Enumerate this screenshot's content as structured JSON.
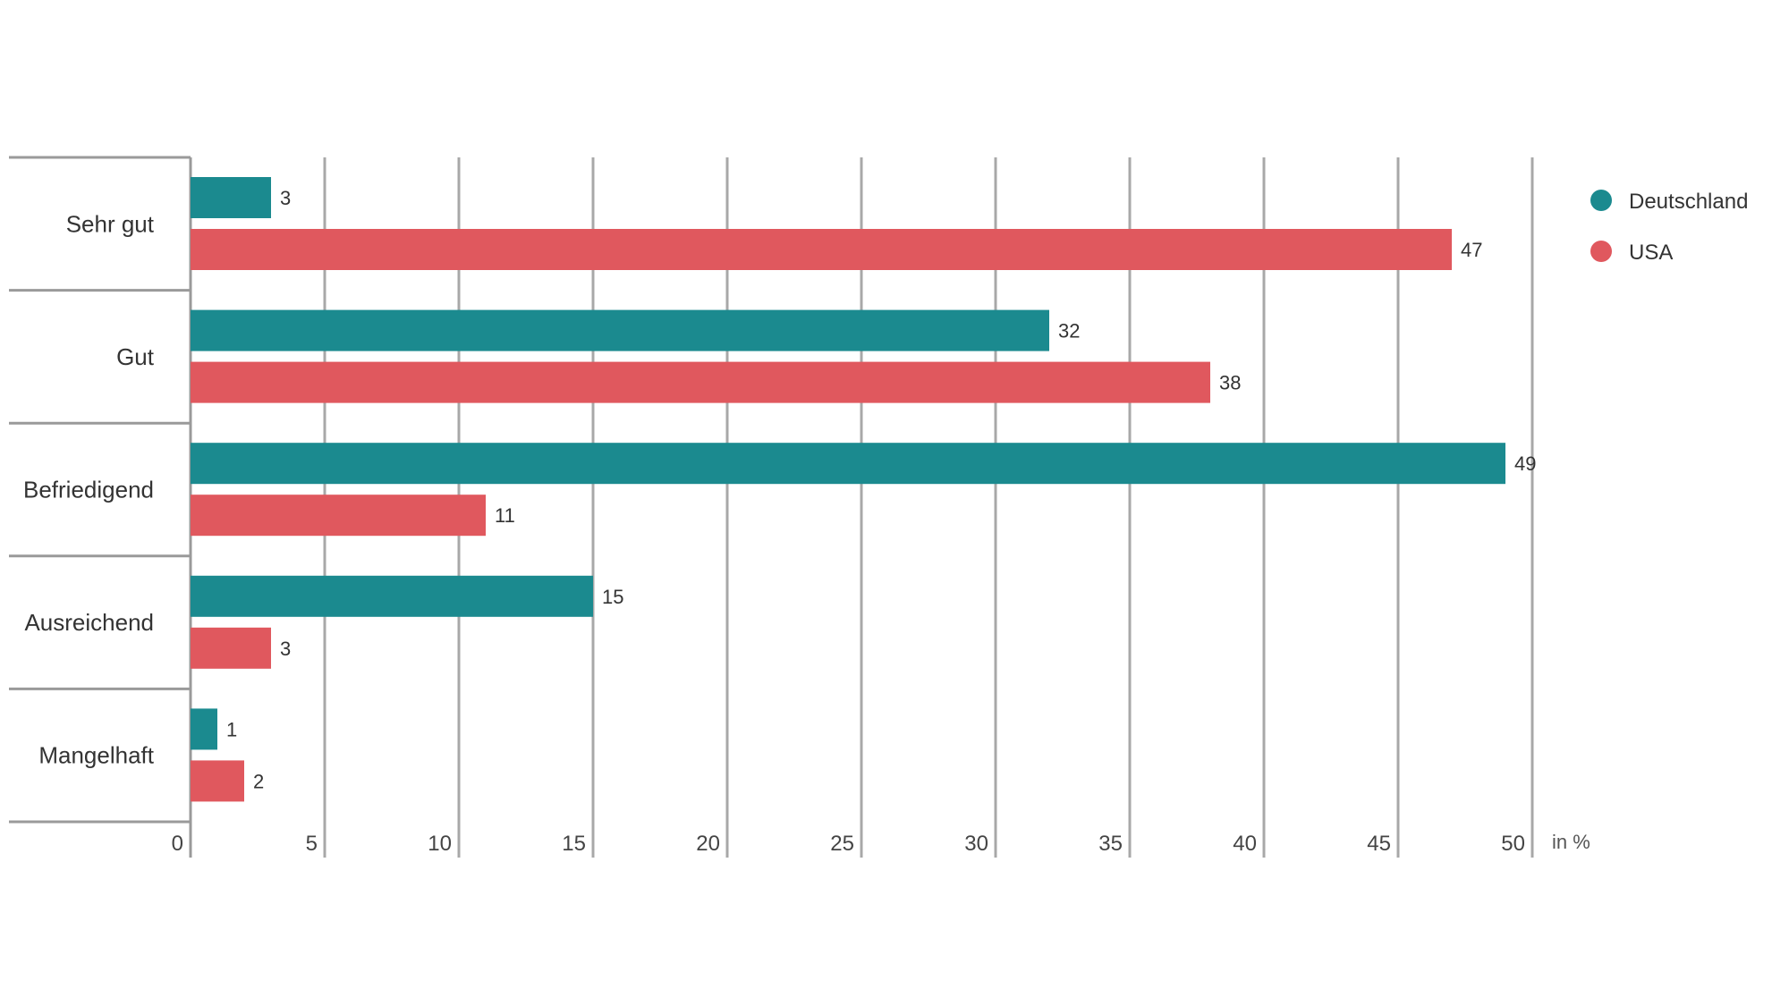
{
  "chart_data": {
    "type": "bar",
    "orientation": "horizontal",
    "categories": [
      "Sehr gut",
      "Gut",
      "Befriedigend",
      "Ausreichend",
      "Mangelhaft"
    ],
    "series": [
      {
        "name": "Deutschland",
        "color": "#1b8a8f",
        "values": [
          3,
          32,
          49,
          15,
          1
        ]
      },
      {
        "name": "USA",
        "color": "#e0585e",
        "values": [
          47,
          38,
          11,
          3,
          2
        ]
      }
    ],
    "xlim": [
      0,
      50
    ],
    "xticks": [
      0,
      5,
      10,
      15,
      20,
      25,
      30,
      35,
      40,
      45,
      50
    ],
    "xlabel": "in %",
    "grid": true,
    "legend_position": "top-right"
  }
}
